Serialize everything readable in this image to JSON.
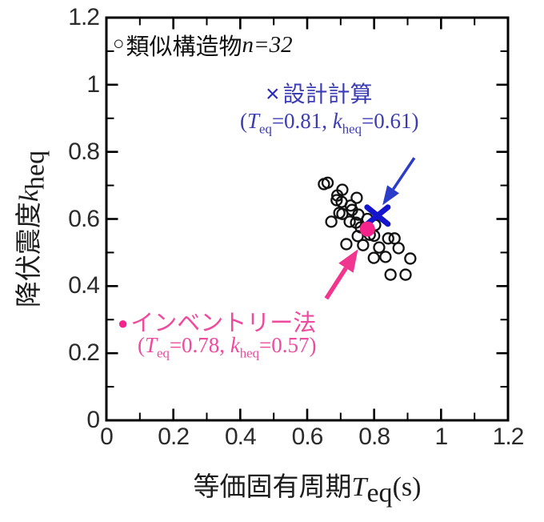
{
  "chart_data": {
    "type": "scatter",
    "title": "",
    "xlabel": "等価固有周期 T_eq (s)",
    "ylabel": "降伏震度 k_heq",
    "xlim": [
      0,
      1.2
    ],
    "ylim": [
      0,
      1.2
    ],
    "x_ticks": [
      0,
      0.2,
      0.4,
      0.6,
      0.8,
      1,
      1.2
    ],
    "y_ticks": [
      0,
      0.2,
      0.4,
      0.6,
      0.8,
      1,
      1.2
    ],
    "minor_tick_step": 0.1,
    "grid": false,
    "legend_position": "top-left-inside",
    "series": [
      {
        "name": "類似構造物 n=32",
        "marker": "open-circle",
        "color": "#111111",
        "points": [
          [
            0.65,
            0.704
          ],
          [
            0.661,
            0.708
          ],
          [
            0.705,
            0.687
          ],
          [
            0.69,
            0.67
          ],
          [
            0.748,
            0.663
          ],
          [
            0.688,
            0.656
          ],
          [
            0.703,
            0.651
          ],
          [
            0.73,
            0.64
          ],
          [
            0.734,
            0.627
          ],
          [
            0.696,
            0.618
          ],
          [
            0.705,
            0.615
          ],
          [
            0.753,
            0.613
          ],
          [
            0.78,
            0.6
          ],
          [
            0.672,
            0.592
          ],
          [
            0.727,
            0.592
          ],
          [
            0.746,
            0.589
          ],
          [
            0.803,
            0.582
          ],
          [
            0.76,
            0.575
          ],
          [
            0.787,
            0.553
          ],
          [
            0.8,
            0.55
          ],
          [
            0.751,
            0.549
          ],
          [
            0.842,
            0.542
          ],
          [
            0.861,
            0.542
          ],
          [
            0.717,
            0.525
          ],
          [
            0.767,
            0.522
          ],
          [
            0.815,
            0.515
          ],
          [
            0.873,
            0.513
          ],
          [
            0.799,
            0.484
          ],
          [
            0.834,
            0.487
          ],
          [
            0.908,
            0.482
          ],
          [
            0.849,
            0.434
          ],
          [
            0.894,
            0.434
          ]
        ]
      },
      {
        "name": "設計計算",
        "marker": "x",
        "color": "#1414cd",
        "points": [
          [
            0.81,
            0.61
          ]
        ]
      },
      {
        "name": "インベントリー法",
        "marker": "filled-circle",
        "color": "#f5238c",
        "points": [
          [
            0.78,
            0.57
          ]
        ]
      }
    ],
    "arrows": [
      {
        "name": "design-arrow",
        "color": "#2b3cc8",
        "from": [
          0.92,
          0.782
        ],
        "to": [
          0.825,
          0.641
        ],
        "shaft": 3.5,
        "head_len": 24,
        "head_w": 9
      },
      {
        "name": "inventory-arrow",
        "color": "#f0368f",
        "from": [
          0.657,
          0.363
        ],
        "to": [
          0.752,
          0.51
        ],
        "shaft": 5.5,
        "head_len": 28,
        "head_w": 11
      }
    ]
  },
  "x_axis": {
    "tick_labels": [
      "0",
      "0.2",
      "0.4",
      "0.6",
      "0.8",
      "1",
      "1.2"
    ],
    "label_jp": "等価固有周期",
    "var": "T",
    "sub": "eq",
    "unit": "(s)"
  },
  "y_axis": {
    "tick_labels": [
      "0",
      "0.2",
      "0.4",
      "0.6",
      "0.8",
      "1",
      "1.2"
    ],
    "label_jp": "降伏震度",
    "var": "k",
    "sub": "heq"
  },
  "legend": {
    "marker": "○",
    "label": "類似構造物",
    "count": "n=32"
  },
  "design_annotation": {
    "marker": "×",
    "title": "設計計算",
    "open": "(",
    "var1": "T",
    "sub1": "eq",
    "val1": "=0.81, ",
    "var2": "k",
    "sub2": "heq",
    "val2": "=0.61)"
  },
  "inventory_annotation": {
    "marker": "●",
    "title": "インベントリー法",
    "open": "(",
    "var1": "T",
    "sub1": "eq",
    "val1": "=0.78, ",
    "var2": "k",
    "sub2": "heq",
    "val2": "=0.57)"
  },
  "colors": {
    "axis": "#000000",
    "blue_text": "#3c3cb4",
    "blue_marker": "#1414cd",
    "blue_arrow": "#2b3cc8",
    "pink_text": "#ee4b9e",
    "pink_marker": "#f5238c",
    "pink_arrow": "#f0368f"
  }
}
